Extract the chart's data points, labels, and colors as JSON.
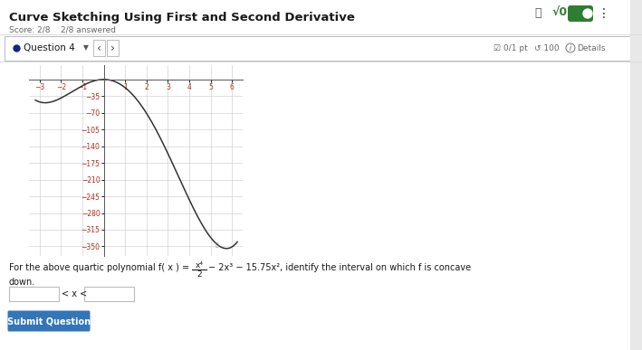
{
  "title": "Curve Sketching Using First and Second Derivative",
  "score_text": "Score: 2/8    2/8 answered",
  "question_label": "Question 4",
  "formula_line1": "For the above quartic polynomial f( x ) =",
  "formula_frac_top": "x⁴",
  "formula_frac_bot": "2",
  "formula_line1b": "− 2x³ − 15.75x², identify the interval on which f is concave",
  "formula_line2": "down.",
  "answer_label": "< x <",
  "submit_text": "Submit Question",
  "graph_xlim": [
    -3.5,
    6.5
  ],
  "graph_ylim": [
    -370,
    30
  ],
  "graph_xticks": [
    -3,
    -2,
    -1,
    1,
    2,
    3,
    4,
    5,
    6
  ],
  "graph_yticks": [
    -350,
    -315,
    -280,
    -245,
    -210,
    -175,
    -140,
    -105,
    -70,
    -35
  ],
  "curve_color": "#333333",
  "grid_color": "#c8c8c8",
  "bg_color": "#ffffff",
  "header_color": "#1a1a1a",
  "score_color": "#666666",
  "axis_label_color": "#b03020",
  "blue_button_color": "#3275b8",
  "question_dot_color": "#1a237e",
  "green_color": "#2e7d32",
  "border_color": "#bbbbbb"
}
